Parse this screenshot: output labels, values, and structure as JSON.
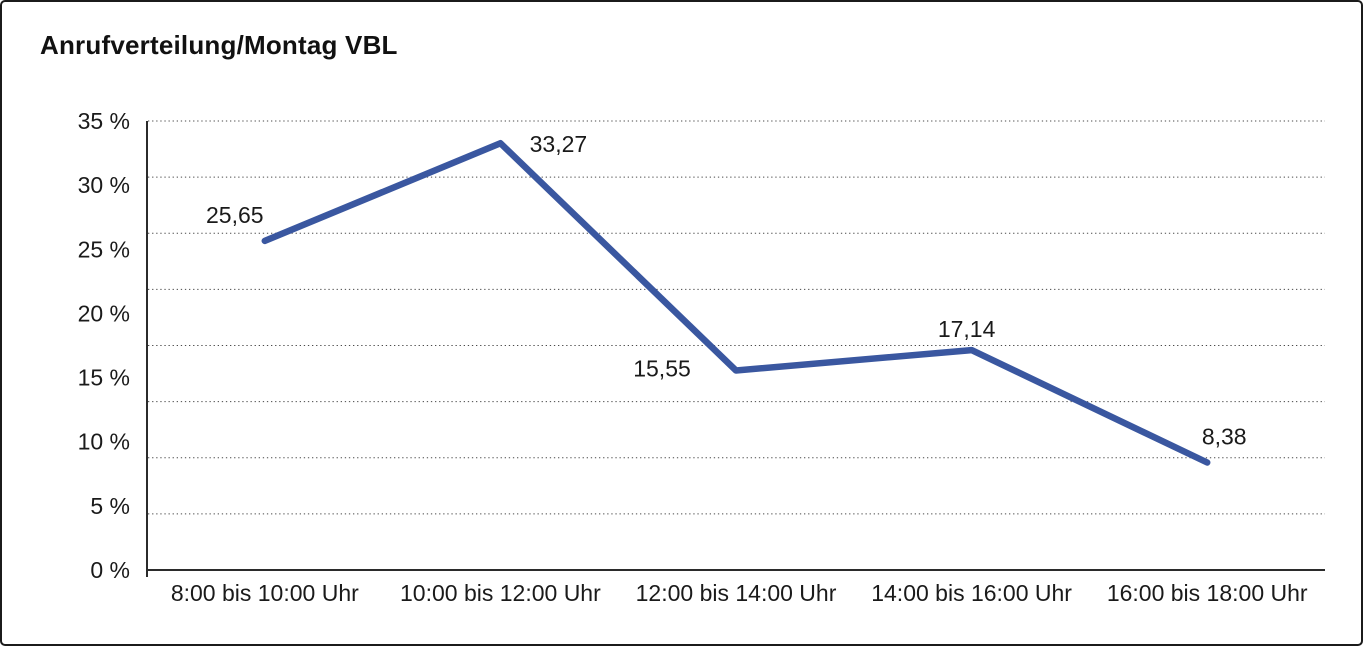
{
  "chart_data": {
    "type": "line",
    "title": "Anrufverteilung/Montag VBL",
    "categories": [
      "8:00 bis 10:00 Uhr",
      "10:00 bis 12:00 Uhr",
      "12:00 bis 14:00 Uhr",
      "14:00 bis 16:00 Uhr",
      "16:00 bis 18:00 Uhr"
    ],
    "values": [
      25.65,
      33.27,
      15.55,
      17.14,
      8.38
    ],
    "point_labels": [
      "25,65",
      "33,27",
      "15,55",
      "17,14",
      "8,38"
    ],
    "y_tick_labels": [
      "35 %",
      "30 %",
      "25 %",
      "20 %",
      "15 %",
      "10 %",
      "5 %",
      "0 %"
    ],
    "ylim": [
      0,
      35
    ],
    "y_tick_step": 5,
    "xlabel": "",
    "ylabel": "",
    "legend": "none",
    "grid": "horizontal-dotted",
    "gridline_intervals": 8,
    "line_color": "#3A57A0",
    "axis_color": "#2b2b2b",
    "gridline_color": "#4a4a4a",
    "text_color": "#1a1a1a"
  }
}
